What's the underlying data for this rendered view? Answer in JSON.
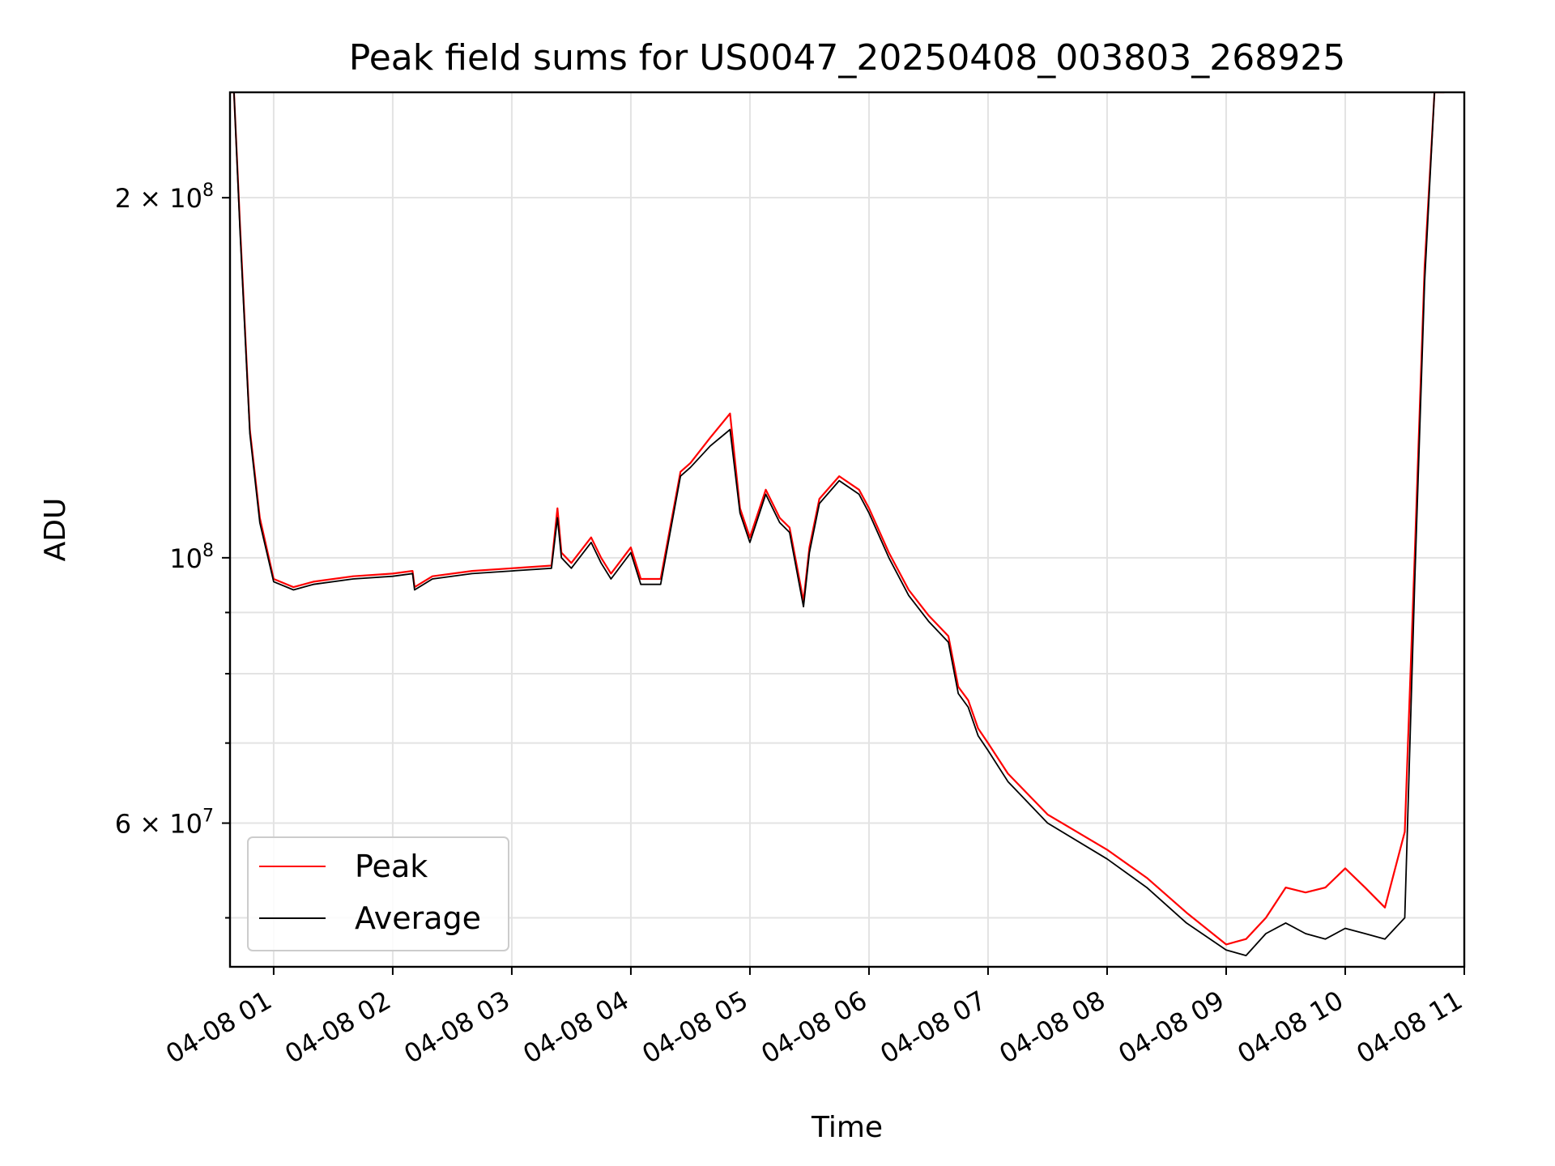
{
  "chart_data": {
    "type": "line",
    "title": "Peak field sums for US0047_20250408_003803_268925",
    "xlabel": "Time",
    "ylabel": "ADU",
    "y_scale": "log",
    "ylim": [
      45500000,
      245000000
    ],
    "xlim": [
      "2025-04-08 00:38",
      "2025-04-08 11:00"
    ],
    "grid": true,
    "legend_position": "lower-left",
    "x_tick_labels": [
      "04-08 01",
      "04-08 02",
      "04-08 03",
      "04-08 04",
      "04-08 05",
      "04-08 06",
      "04-08 07",
      "04-08 08",
      "04-08 09",
      "04-08 10",
      "04-08 11"
    ],
    "x_ticks": [
      "2025-04-08 01:00",
      "2025-04-08 02:00",
      "2025-04-08 03:00",
      "2025-04-08 04:00",
      "2025-04-08 05:00",
      "2025-04-08 06:00",
      "2025-04-08 07:00",
      "2025-04-08 08:00",
      "2025-04-08 09:00",
      "2025-04-08 10:00",
      "2025-04-08 11:00"
    ],
    "y_major_ticks": [
      {
        "value": 60000000,
        "base": "6 × 10",
        "exp": "7"
      },
      {
        "value": 100000000,
        "base": "10",
        "exp": "8"
      },
      {
        "value": 200000000,
        "base": "2 × 10",
        "exp": "8"
      }
    ],
    "y_minor_ticks": [
      50000000,
      70000000,
      80000000,
      90000000
    ],
    "x": [
      "2025-04-08 00:38",
      "2025-04-08 00:40",
      "2025-04-08 00:43",
      "2025-04-08 00:48",
      "2025-04-08 00:53",
      "2025-04-08 01:00",
      "2025-04-08 01:10",
      "2025-04-08 01:20",
      "2025-04-08 01:40",
      "2025-04-08 02:00",
      "2025-04-08 02:10",
      "2025-04-08 02:11",
      "2025-04-08 02:20",
      "2025-04-08 02:40",
      "2025-04-08 03:00",
      "2025-04-08 03:20",
      "2025-04-08 03:23",
      "2025-04-08 03:25",
      "2025-04-08 03:30",
      "2025-04-08 03:40",
      "2025-04-08 03:45",
      "2025-04-08 03:50",
      "2025-04-08 04:00",
      "2025-04-08 04:05",
      "2025-04-08 04:15",
      "2025-04-08 04:25",
      "2025-04-08 04:30",
      "2025-04-08 04:40",
      "2025-04-08 04:50",
      "2025-04-08 04:55",
      "2025-04-08 05:00",
      "2025-04-08 05:08",
      "2025-04-08 05:15",
      "2025-04-08 05:20",
      "2025-04-08 05:27",
      "2025-04-08 05:30",
      "2025-04-08 05:35",
      "2025-04-08 05:45",
      "2025-04-08 05:55",
      "2025-04-08 06:00",
      "2025-04-08 06:10",
      "2025-04-08 06:20",
      "2025-04-08 06:30",
      "2025-04-08 06:40",
      "2025-04-08 06:45",
      "2025-04-08 06:50",
      "2025-04-08 06:55",
      "2025-04-08 07:00",
      "2025-04-08 07:10",
      "2025-04-08 07:30",
      "2025-04-08 08:00",
      "2025-04-08 08:20",
      "2025-04-08 08:40",
      "2025-04-08 09:00",
      "2025-04-08 09:10",
      "2025-04-08 09:20",
      "2025-04-08 09:30",
      "2025-04-08 09:40",
      "2025-04-08 09:50",
      "2025-04-08 10:00",
      "2025-04-08 10:10",
      "2025-04-08 10:20",
      "2025-04-08 10:30",
      "2025-04-08 10:35",
      "2025-04-08 10:40",
      "2025-04-08 10:45",
      "2025-04-08 10:50"
    ],
    "series": [
      {
        "name": "Peak",
        "color": "#ff0000",
        "values": [
          245000000,
          245000000,
          190000000,
          128000000,
          108000000,
          96000000,
          94500000,
          95500000,
          96500000,
          97000000,
          97500000,
          94500000,
          96500000,
          97500000,
          98000000,
          98500000,
          110000000,
          101000000,
          99000000,
          104000000,
          100000000,
          97000000,
          102000000,
          96000000,
          96000000,
          118000000,
          120000000,
          126000000,
          132000000,
          110000000,
          104000000,
          114000000,
          108000000,
          106000000,
          92000000,
          102000000,
          112000000,
          117000000,
          114000000,
          110000000,
          101000000,
          94000000,
          89500000,
          86000000,
          78000000,
          76000000,
          72000000,
          70000000,
          66000000,
          61000000,
          57000000,
          54000000,
          50500000,
          47500000,
          48000000,
          50000000,
          53000000,
          52500000,
          53000000,
          55000000,
          53000000,
          51000000,
          59000000,
          100000000,
          175000000,
          245000000,
          245000000
        ]
      },
      {
        "name": "Average",
        "color": "#000000",
        "values": [
          245000000,
          245000000,
          188000000,
          127000000,
          107000000,
          95500000,
          94000000,
          95000000,
          96000000,
          96500000,
          97000000,
          94000000,
          96000000,
          97000000,
          97500000,
          98000000,
          108000000,
          100000000,
          98000000,
          103000000,
          99000000,
          96000000,
          101000000,
          95000000,
          95000000,
          117000000,
          119000000,
          124000000,
          128000000,
          109000000,
          103000000,
          113000000,
          107000000,
          105000000,
          91000000,
          101000000,
          111000000,
          116000000,
          113000000,
          109000000,
          100000000,
          93000000,
          88500000,
          85000000,
          77000000,
          75000000,
          71000000,
          69000000,
          65000000,
          60000000,
          56000000,
          53000000,
          49500000,
          47000000,
          46500000,
          48500000,
          49500000,
          48500000,
          48000000,
          49000000,
          48500000,
          48000000,
          50000000,
          95000000,
          170000000,
          245000000,
          245000000
        ]
      }
    ]
  }
}
